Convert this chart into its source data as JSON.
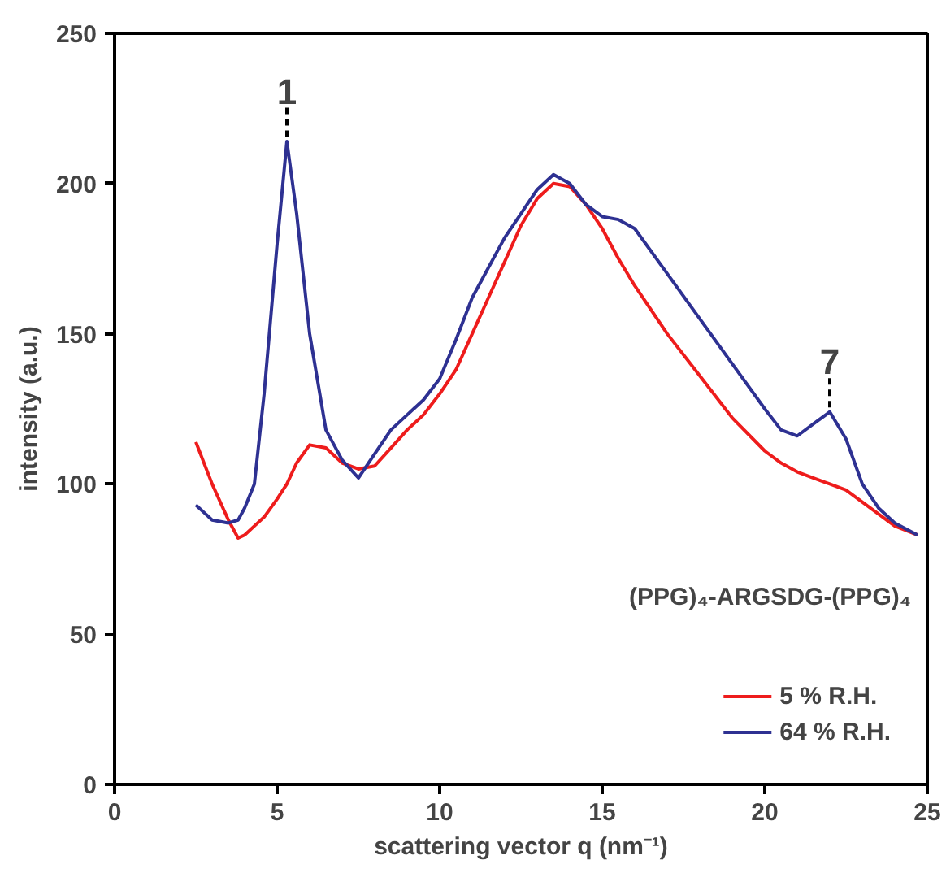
{
  "chart_data": {
    "type": "line",
    "xlabel": "scattering vector q (nm⁻¹)",
    "ylabel": "intensity (a.u.)",
    "xlim": [
      0,
      25
    ],
    "ylim": [
      0,
      250
    ],
    "xticks": [
      0,
      5,
      10,
      15,
      20,
      25
    ],
    "yticks": [
      0,
      50,
      100,
      150,
      200,
      250
    ],
    "grid": false,
    "legend": "bottom right",
    "marker": "none",
    "line_style": "solid",
    "x": [
      2.5,
      3.0,
      3.5,
      3.8,
      4.0,
      4.3,
      4.6,
      5.0,
      5.3,
      5.6,
      6.0,
      6.5,
      7.0,
      7.5,
      8.0,
      8.5,
      9.0,
      9.5,
      10.0,
      10.5,
      11.0,
      11.5,
      12.0,
      12.5,
      13.0,
      13.5,
      14.0,
      14.5,
      15.0,
      15.5,
      16.0,
      17.0,
      18.0,
      19.0,
      20.0,
      20.5,
      21.0,
      21.5,
      22.0,
      22.5,
      23.0,
      23.5,
      24.0,
      24.7
    ],
    "series": [
      {
        "name": "5 % R.H.",
        "color": "#ee1c1c",
        "values": [
          114,
          100,
          88,
          82,
          83,
          86,
          89,
          95,
          100,
          107,
          113,
          112,
          107,
          105,
          106,
          112,
          118,
          123,
          130,
          138,
          150,
          162,
          174,
          186,
          195,
          200,
          199,
          193,
          185,
          175,
          166,
          150,
          136,
          122,
          111,
          107,
          104,
          102,
          100,
          98,
          94,
          90,
          86,
          83
        ]
      },
      {
        "name": "64 % R.H.",
        "color": "#2e3192",
        "values": [
          93,
          88,
          87,
          88,
          92,
          100,
          130,
          180,
          214,
          190,
          150,
          118,
          108,
          102,
          110,
          118,
          123,
          128,
          135,
          148,
          162,
          172,
          182,
          190,
          198,
          203,
          200,
          193,
          189,
          188,
          185,
          170,
          155,
          140,
          125,
          118,
          116,
          120,
          124,
          115,
          100,
          92,
          87,
          83
        ]
      }
    ],
    "annotations": [
      {
        "text": "1",
        "x": 5.3,
        "y": 214
      },
      {
        "text": "7",
        "x": 22.0,
        "y": 124
      },
      "(PPG)₄-ARGSDG-(PPG)₄"
    ]
  }
}
